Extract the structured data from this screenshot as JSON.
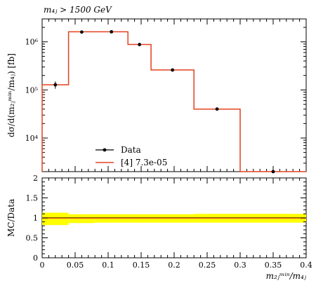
{
  "chart_data": [
    {
      "type": "line",
      "title": "m₄ⱼ > 1500 GeV",
      "ylabel": "dσ/d(m₂ⱼᵐⁱⁿ/m₄ⱼ) [fb]",
      "xlabel": "",
      "yscale": "log",
      "xlim": [
        0,
        0.4
      ],
      "ylim": [
        2000,
        3000000
      ],
      "y_tick_labels": [
        {
          "value": 10000,
          "label": "10⁴"
        },
        {
          "value": 100000,
          "label": "10⁵"
        },
        {
          "value": 1000000,
          "label": "10⁶"
        }
      ],
      "bin_edges": [
        0,
        0.04,
        0.08,
        0.13,
        0.165,
        0.23,
        0.3,
        0.4
      ],
      "series": [
        {
          "name": "Data",
          "style": "points",
          "color": "#000000",
          "x": [
            0.02,
            0.06,
            0.105,
            0.1475,
            0.1975,
            0.265,
            0.35
          ],
          "y": [
            128000,
            1600000,
            1620000,
            880000,
            260000,
            40000,
            2000
          ],
          "y_err": [
            22000,
            100000,
            100000,
            60000,
            18000,
            2500,
            120
          ]
        },
        {
          "name": "[4] 7.3e-05",
          "style": "step",
          "color": "#e4411f",
          "values": [
            128000,
            1620000,
            1620000,
            880000,
            260000,
            40000,
            2000
          ]
        }
      ],
      "legend": {
        "placement": "lower-left"
      }
    },
    {
      "type": "line",
      "title": "",
      "ylabel": "MC/Data",
      "xlabel": "m₂ⱼᵐⁱⁿ/m₄ⱼ",
      "xlim": [
        0,
        0.4
      ],
      "ylim": [
        0,
        2
      ],
      "x_ticks": [
        0,
        0.05,
        0.1,
        0.15,
        0.2,
        0.25,
        0.3,
        0.35,
        0.4
      ],
      "x_tick_labels": [
        "0",
        "0.05",
        "0.1",
        "0.15",
        "0.2",
        "0.25",
        "0.3",
        "0.35",
        "0.4"
      ],
      "y_ticks": [
        0,
        0.5,
        1,
        1.5,
        2
      ],
      "y_tick_labels": [
        "0",
        "0.5",
        "1",
        "1.5",
        "2"
      ],
      "bin_edges": [
        0,
        0.04,
        0.08,
        0.13,
        0.165,
        0.23,
        0.3,
        0.4
      ],
      "uncertainty_band": {
        "color": "#ffff00",
        "lower": [
          0.82,
          0.87,
          0.88,
          0.88,
          0.88,
          0.88,
          0.88
        ],
        "upper": [
          1.13,
          1.09,
          1.09,
          1.09,
          1.09,
          1.1,
          1.1
        ]
      },
      "ratio_line": {
        "color": "#e4411f",
        "values": [
          1,
          1,
          1,
          1,
          1,
          1,
          1
        ]
      },
      "reference_line": {
        "color": "#000000",
        "value": 1
      }
    }
  ]
}
